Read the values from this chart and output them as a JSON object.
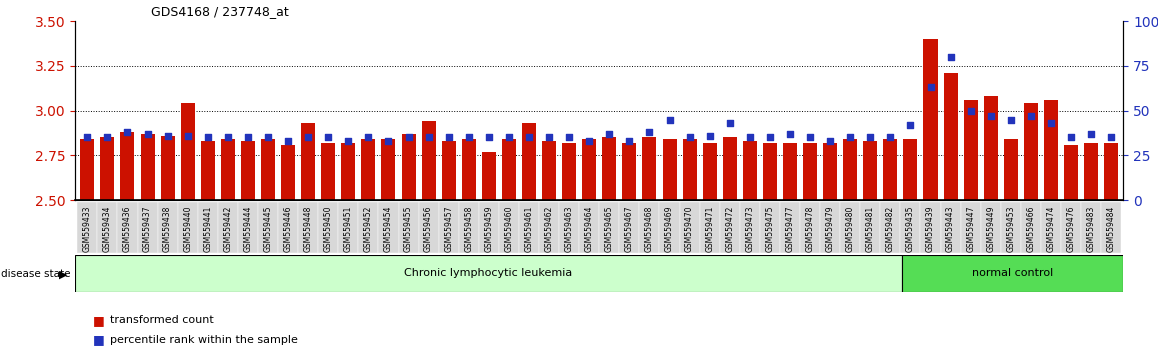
{
  "title": "GDS4168 / 237748_at",
  "categories": [
    "GSM559433",
    "GSM559434",
    "GSM559436",
    "GSM559437",
    "GSM559438",
    "GSM559440",
    "GSM559441",
    "GSM559442",
    "GSM559444",
    "GSM559445",
    "GSM559446",
    "GSM559448",
    "GSM559450",
    "GSM559451",
    "GSM559452",
    "GSM559454",
    "GSM559455",
    "GSM559456",
    "GSM559457",
    "GSM559458",
    "GSM559459",
    "GSM559460",
    "GSM559461",
    "GSM559462",
    "GSM559463",
    "GSM559464",
    "GSM559465",
    "GSM559467",
    "GSM559468",
    "GSM559469",
    "GSM559470",
    "GSM559471",
    "GSM559472",
    "GSM559473",
    "GSM559475",
    "GSM559477",
    "GSM559478",
    "GSM559479",
    "GSM559480",
    "GSM559481",
    "GSM559482",
    "GSM559435",
    "GSM559439",
    "GSM559443",
    "GSM559447",
    "GSM559449",
    "GSM559453",
    "GSM559466",
    "GSM559474",
    "GSM559476",
    "GSM559483",
    "GSM559484"
  ],
  "red_values": [
    2.84,
    2.85,
    2.88,
    2.87,
    2.86,
    3.04,
    2.83,
    2.84,
    2.83,
    2.84,
    2.81,
    2.93,
    2.82,
    2.82,
    2.84,
    2.84,
    2.87,
    2.94,
    2.83,
    2.84,
    2.77,
    2.84,
    2.93,
    2.83,
    2.82,
    2.84,
    2.85,
    2.82,
    2.85,
    2.84,
    2.84,
    2.82,
    2.85,
    2.83,
    2.82,
    2.82,
    2.82,
    2.82,
    2.84,
    2.83,
    2.84,
    2.84,
    3.4,
    3.21,
    3.06,
    3.08,
    2.84,
    3.04,
    3.06,
    2.81,
    2.82,
    2.82
  ],
  "blue_values": [
    35,
    35,
    38,
    37,
    36,
    36,
    35,
    35,
    35,
    35,
    33,
    35,
    35,
    33,
    35,
    33,
    35,
    35,
    35,
    35,
    35,
    35,
    35,
    35,
    35,
    33,
    37,
    33,
    38,
    45,
    35,
    36,
    43,
    35,
    35,
    37,
    35,
    33,
    35,
    35,
    35,
    42,
    63,
    80,
    50,
    47,
    45,
    47,
    43,
    35,
    37,
    35
  ],
  "ylim_left": [
    2.5,
    3.5
  ],
  "ylim_right": [
    0,
    100
  ],
  "yticks_left": [
    2.5,
    2.75,
    3.0,
    3.25,
    3.5
  ],
  "yticks_right": [
    0,
    25,
    50,
    75,
    100
  ],
  "bar_color": "#cc1100",
  "dot_color": "#2233bb",
  "cll_label": "Chronic lymphocytic leukemia",
  "nc_label": "normal control",
  "cll_count": 41,
  "nc_count": 11,
  "disease_label": "disease state",
  "legend_red": "transformed count",
  "legend_blue": "percentile rank within the sample",
  "tick_bg_color": "#d8d8d8",
  "cll_color": "#ccffcc",
  "nc_color": "#55dd55"
}
